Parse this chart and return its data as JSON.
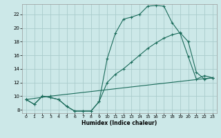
{
  "xlabel": "Humidex (Indice chaleur)",
  "background_color": "#cce8e8",
  "grid_color": "#aacccc",
  "line_color": "#1a6b5a",
  "xlim": [
    -0.5,
    23.5
  ],
  "ylim": [
    7.5,
    23.5
  ],
  "xticks": [
    0,
    1,
    2,
    3,
    4,
    5,
    6,
    7,
    8,
    9,
    10,
    11,
    12,
    13,
    14,
    15,
    16,
    17,
    18,
    19,
    20,
    21,
    22,
    23
  ],
  "yticks": [
    8,
    10,
    12,
    14,
    16,
    18,
    20,
    22
  ],
  "line1_x": [
    0,
    1,
    2,
    3,
    4,
    5,
    6,
    7,
    8,
    9,
    10,
    11,
    12,
    13,
    14,
    15,
    16,
    17,
    18,
    19,
    20,
    21,
    22,
    23
  ],
  "line1_y": [
    9.5,
    8.8,
    10.0,
    9.8,
    9.5,
    8.5,
    7.8,
    7.8,
    7.8,
    9.2,
    15.5,
    19.2,
    21.3,
    21.6,
    22.0,
    23.2,
    23.3,
    23.2,
    20.8,
    19.2,
    15.8,
    12.5,
    13.0,
    12.7
  ],
  "line2_x": [
    0,
    1,
    2,
    3,
    4,
    5,
    6,
    7,
    8,
    9,
    10,
    11,
    12,
    13,
    14,
    15,
    16,
    17,
    18,
    19,
    20,
    21,
    22,
    23
  ],
  "line2_y": [
    9.5,
    8.8,
    10.0,
    9.8,
    9.5,
    8.5,
    7.8,
    7.8,
    7.8,
    9.2,
    12.0,
    13.2,
    14.0,
    15.0,
    16.0,
    17.0,
    17.8,
    18.5,
    19.0,
    19.3,
    18.0,
    13.5,
    12.5,
    12.7
  ],
  "line3_x": [
    0,
    3,
    23
  ],
  "line3_y": [
    9.5,
    10.0,
    12.7
  ]
}
